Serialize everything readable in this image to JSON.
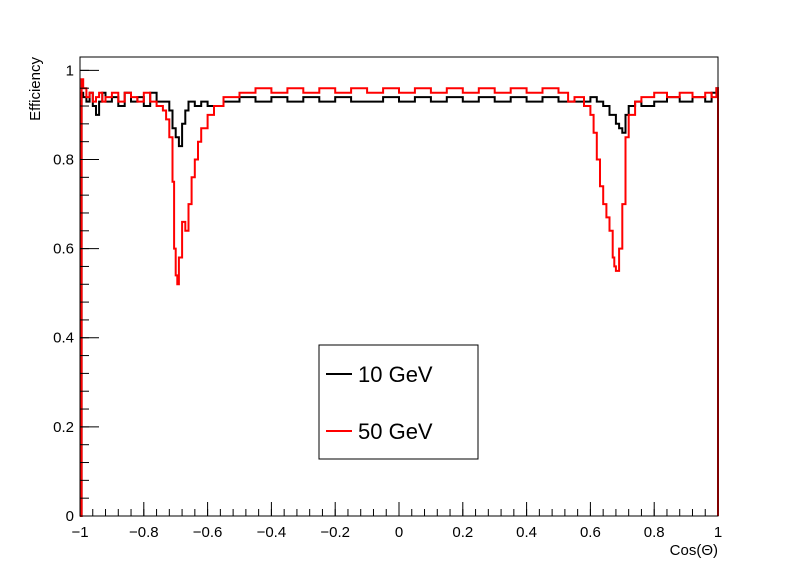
{
  "chart_data": {
    "type": "line",
    "title": "",
    "xlabel": "Cos(Θ)",
    "ylabel": "Efficiency",
    "xlim": [
      -1,
      1
    ],
    "ylim": [
      0,
      1.03
    ],
    "x_ticks": [
      "−1",
      "−0.8",
      "−0.6",
      "−0.4",
      "−0.2",
      "0",
      "0.2",
      "0.4",
      "0.6",
      "0.8",
      "1"
    ],
    "y_ticks": [
      "0",
      "0.2",
      "0.4",
      "0.6",
      "0.8",
      "1"
    ],
    "legend_position": "center",
    "grid": false,
    "series": [
      {
        "name": "10 GeV",
        "color": "#000000",
        "points": [
          [
            -1.0,
            0.0
          ],
          [
            -0.995,
            0.95
          ],
          [
            -0.99,
            0.94
          ],
          [
            -0.98,
            0.93
          ],
          [
            -0.97,
            0.95
          ],
          [
            -0.96,
            0.92
          ],
          [
            -0.95,
            0.9
          ],
          [
            -0.94,
            0.93
          ],
          [
            -0.93,
            0.95
          ],
          [
            -0.92,
            0.93
          ],
          [
            -0.9,
            0.94
          ],
          [
            -0.88,
            0.92
          ],
          [
            -0.86,
            0.95
          ],
          [
            -0.84,
            0.93
          ],
          [
            -0.82,
            0.94
          ],
          [
            -0.8,
            0.92
          ],
          [
            -0.78,
            0.95
          ],
          [
            -0.76,
            0.93
          ],
          [
            -0.74,
            0.93
          ],
          [
            -0.72,
            0.91
          ],
          [
            -0.71,
            0.87
          ],
          [
            -0.7,
            0.85
          ],
          [
            -0.69,
            0.83
          ],
          [
            -0.68,
            0.88
          ],
          [
            -0.67,
            0.91
          ],
          [
            -0.66,
            0.93
          ],
          [
            -0.64,
            0.92
          ],
          [
            -0.62,
            0.93
          ],
          [
            -0.6,
            0.92
          ],
          [
            -0.55,
            0.93
          ],
          [
            -0.5,
            0.94
          ],
          [
            -0.45,
            0.93
          ],
          [
            -0.4,
            0.94
          ],
          [
            -0.35,
            0.93
          ],
          [
            -0.3,
            0.94
          ],
          [
            -0.25,
            0.93
          ],
          [
            -0.2,
            0.94
          ],
          [
            -0.15,
            0.93
          ],
          [
            -0.1,
            0.93
          ],
          [
            -0.05,
            0.94
          ],
          [
            0.0,
            0.93
          ],
          [
            0.05,
            0.94
          ],
          [
            0.1,
            0.93
          ],
          [
            0.15,
            0.94
          ],
          [
            0.2,
            0.93
          ],
          [
            0.25,
            0.94
          ],
          [
            0.3,
            0.93
          ],
          [
            0.35,
            0.94
          ],
          [
            0.4,
            0.93
          ],
          [
            0.45,
            0.94
          ],
          [
            0.5,
            0.93
          ],
          [
            0.55,
            0.93
          ],
          [
            0.6,
            0.94
          ],
          [
            0.62,
            0.93
          ],
          [
            0.64,
            0.92
          ],
          [
            0.66,
            0.9
          ],
          [
            0.68,
            0.88
          ],
          [
            0.69,
            0.87
          ],
          [
            0.7,
            0.86
          ],
          [
            0.71,
            0.9
          ],
          [
            0.72,
            0.92
          ],
          [
            0.74,
            0.93
          ],
          [
            0.76,
            0.92
          ],
          [
            0.8,
            0.93
          ],
          [
            0.84,
            0.94
          ],
          [
            0.88,
            0.93
          ],
          [
            0.92,
            0.94
          ],
          [
            0.96,
            0.93
          ],
          [
            0.98,
            0.95
          ],
          [
            0.995,
            0.96
          ],
          [
            1.0,
            0.0
          ]
        ]
      },
      {
        "name": "50 GeV",
        "color": "#ff0000",
        "points": [
          [
            -1.0,
            0.0
          ],
          [
            -0.995,
            0.98
          ],
          [
            -0.99,
            0.96
          ],
          [
            -0.98,
            0.94
          ],
          [
            -0.97,
            0.95
          ],
          [
            -0.96,
            0.93
          ],
          [
            -0.95,
            0.94
          ],
          [
            -0.94,
            0.95
          ],
          [
            -0.93,
            0.93
          ],
          [
            -0.92,
            0.94
          ],
          [
            -0.9,
            0.95
          ],
          [
            -0.88,
            0.93
          ],
          [
            -0.86,
            0.95
          ],
          [
            -0.84,
            0.94
          ],
          [
            -0.82,
            0.93
          ],
          [
            -0.8,
            0.95
          ],
          [
            -0.78,
            0.93
          ],
          [
            -0.76,
            0.92
          ],
          [
            -0.74,
            0.91
          ],
          [
            -0.73,
            0.89
          ],
          [
            -0.72,
            0.85
          ],
          [
            -0.71,
            0.75
          ],
          [
            -0.705,
            0.6
          ],
          [
            -0.7,
            0.54
          ],
          [
            -0.695,
            0.52
          ],
          [
            -0.69,
            0.58
          ],
          [
            -0.68,
            0.66
          ],
          [
            -0.67,
            0.64
          ],
          [
            -0.66,
            0.7
          ],
          [
            -0.65,
            0.76
          ],
          [
            -0.64,
            0.8
          ],
          [
            -0.63,
            0.84
          ],
          [
            -0.62,
            0.87
          ],
          [
            -0.6,
            0.9
          ],
          [
            -0.58,
            0.92
          ],
          [
            -0.55,
            0.94
          ],
          [
            -0.5,
            0.95
          ],
          [
            -0.45,
            0.96
          ],
          [
            -0.4,
            0.95
          ],
          [
            -0.35,
            0.96
          ],
          [
            -0.3,
            0.95
          ],
          [
            -0.25,
            0.96
          ],
          [
            -0.2,
            0.95
          ],
          [
            -0.15,
            0.96
          ],
          [
            -0.1,
            0.95
          ],
          [
            -0.05,
            0.96
          ],
          [
            0.0,
            0.95
          ],
          [
            0.05,
            0.96
          ],
          [
            0.1,
            0.95
          ],
          [
            0.15,
            0.96
          ],
          [
            0.2,
            0.95
          ],
          [
            0.25,
            0.96
          ],
          [
            0.3,
            0.95
          ],
          [
            0.35,
            0.96
          ],
          [
            0.4,
            0.95
          ],
          [
            0.45,
            0.96
          ],
          [
            0.5,
            0.95
          ],
          [
            0.53,
            0.93
          ],
          [
            0.55,
            0.94
          ],
          [
            0.58,
            0.92
          ],
          [
            0.6,
            0.9
          ],
          [
            0.61,
            0.86
          ],
          [
            0.62,
            0.8
          ],
          [
            0.63,
            0.74
          ],
          [
            0.64,
            0.7
          ],
          [
            0.65,
            0.67
          ],
          [
            0.66,
            0.64
          ],
          [
            0.67,
            0.58
          ],
          [
            0.675,
            0.56
          ],
          [
            0.68,
            0.55
          ],
          [
            0.69,
            0.6
          ],
          [
            0.7,
            0.7
          ],
          [
            0.71,
            0.85
          ],
          [
            0.72,
            0.9
          ],
          [
            0.74,
            0.93
          ],
          [
            0.76,
            0.94
          ],
          [
            0.8,
            0.95
          ],
          [
            0.84,
            0.94
          ],
          [
            0.88,
            0.95
          ],
          [
            0.92,
            0.94
          ],
          [
            0.96,
            0.95
          ],
          [
            0.98,
            0.94
          ],
          [
            0.995,
            0.96
          ],
          [
            1.0,
            0.0
          ]
        ]
      }
    ]
  }
}
